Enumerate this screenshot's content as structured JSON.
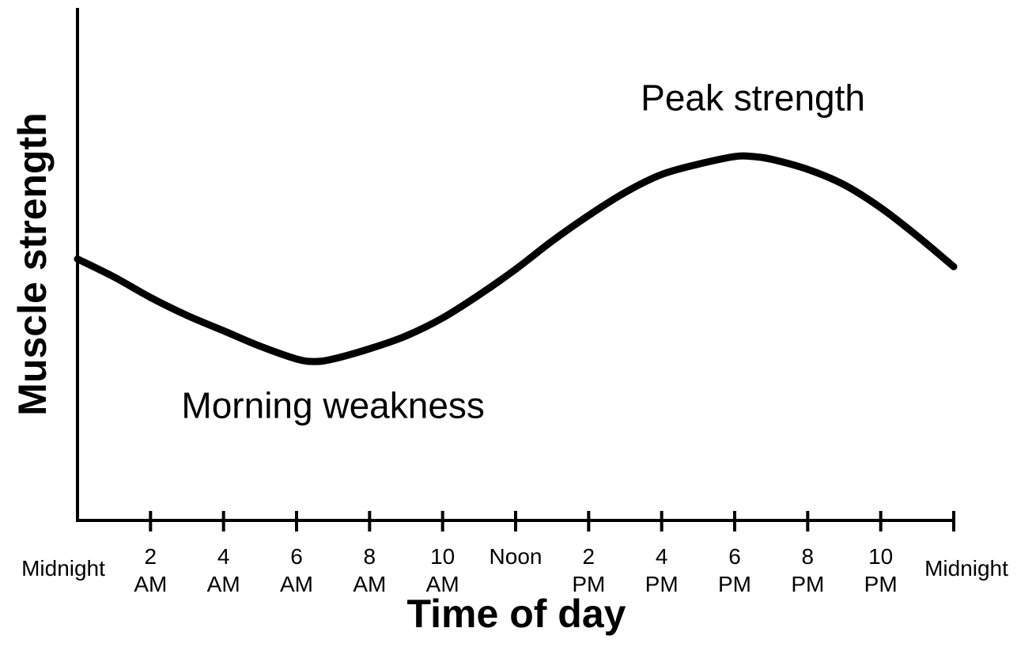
{
  "chart_data": {
    "type": "line",
    "title": "",
    "xlabel": "Time of day",
    "ylabel": "Muscle strength",
    "x_ticks": [
      {
        "hour": 0,
        "lines": [
          "Midnight"
        ]
      },
      {
        "hour": 2,
        "lines": [
          "2",
          "AM"
        ]
      },
      {
        "hour": 4,
        "lines": [
          "4",
          "AM"
        ]
      },
      {
        "hour": 6,
        "lines": [
          "6",
          "AM"
        ]
      },
      {
        "hour": 8,
        "lines": [
          "8",
          "AM"
        ]
      },
      {
        "hour": 10,
        "lines": [
          "10",
          "AM"
        ]
      },
      {
        "hour": 12,
        "lines": [
          "Noon"
        ]
      },
      {
        "hour": 14,
        "lines": [
          "2",
          "PM"
        ]
      },
      {
        "hour": 16,
        "lines": [
          "4",
          "PM"
        ]
      },
      {
        "hour": 18,
        "lines": [
          "6",
          "PM"
        ]
      },
      {
        "hour": 20,
        "lines": [
          "8",
          "PM"
        ]
      },
      {
        "hour": 22,
        "lines": [
          "10",
          "PM"
        ]
      },
      {
        "hour": 24,
        "lines": [
          "Midnight"
        ]
      }
    ],
    "xlim": [
      0,
      24
    ],
    "ylim": [
      0,
      100
    ],
    "y_ticks": [],
    "grid": false,
    "series": [
      {
        "x": [
          0,
          1,
          2,
          3,
          4,
          5,
          6,
          6.5,
          7,
          8,
          9,
          10,
          11,
          12,
          13,
          14,
          15,
          16,
          17,
          18,
          18.5,
          19,
          20,
          21,
          22,
          23,
          24
        ],
        "y": [
          51,
          47.5,
          43.5,
          40,
          37,
          34,
          31.5,
          31,
          31.5,
          33.5,
          36,
          39.5,
          44,
          49,
          54.5,
          59.5,
          64,
          67.5,
          69.5,
          71,
          71,
          70.5,
          68.5,
          65.5,
          61,
          55.5,
          49.5
        ]
      }
    ],
    "annotations": [
      {
        "text": "Peak strength",
        "x": 18.5,
        "y": 80
      },
      {
        "text": "Morning weakness",
        "x": 7,
        "y": 20
      }
    ],
    "line_color": "#000000"
  }
}
